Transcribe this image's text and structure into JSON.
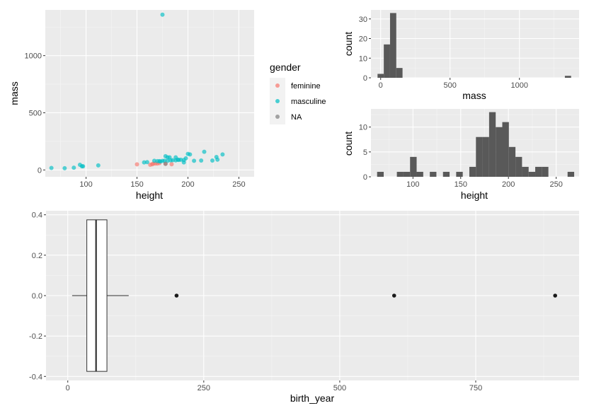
{
  "chart_data": [
    {
      "type": "scatter",
      "xlabel": "height",
      "ylabel": "mass",
      "xlim": [
        60,
        265
      ],
      "ylim": [
        -60,
        1400
      ],
      "xticks": [
        100,
        150,
        200,
        250
      ],
      "yticks": [
        0,
        500,
        1000
      ],
      "legend": {
        "title": "gender",
        "position": "right",
        "entries": [
          {
            "label": "feminine",
            "color": "#F8766D"
          },
          {
            "label": "masculine",
            "color": "#00BFC4"
          },
          {
            "label": "NA",
            "color": "#808080"
          }
        ]
      },
      "series": [
        {
          "name": "feminine",
          "color": "#F8766D",
          "points": [
            [
              150,
              49
            ],
            [
              163,
              45
            ],
            [
              165,
              50
            ],
            [
              166,
              55
            ],
            [
              168,
              56
            ],
            [
              170,
              56
            ],
            [
              172,
              60
            ],
            [
              178,
              55
            ],
            [
              184,
              50
            ]
          ]
        },
        {
          "name": "masculine",
          "color": "#00BFC4",
          "points": [
            [
              66,
              17
            ],
            [
              79,
              15
            ],
            [
              88,
              20
            ],
            [
              94,
              45
            ],
            [
              96,
              32
            ],
            [
              97,
              32
            ],
            [
              112,
              40
            ],
            [
              157,
              66
            ],
            [
              160,
              68
            ],
            [
              167,
              80
            ],
            [
              170,
              77
            ],
            [
              172,
              77
            ],
            [
              173,
              74
            ],
            [
              175,
              1358
            ],
            [
              175,
              79
            ],
            [
              177,
              80
            ],
            [
              178,
              120
            ],
            [
              180,
              110
            ],
            [
              180,
              80
            ],
            [
              182,
              110
            ],
            [
              183,
              84
            ],
            [
              185,
              85
            ],
            [
              188,
              84
            ],
            [
              188,
              110
            ],
            [
              190,
              90
            ],
            [
              191,
              88
            ],
            [
              193,
              89
            ],
            [
              196,
              66
            ],
            [
              196,
              87
            ],
            [
              198,
              102
            ],
            [
              200,
              140
            ],
            [
              202,
              136
            ],
            [
              206,
              80
            ],
            [
              213,
              82
            ],
            [
              216,
              159
            ],
            [
              224,
              82
            ],
            [
              228,
              113
            ],
            [
              229,
              90
            ],
            [
              234,
              136
            ]
          ]
        },
        {
          "name": "NA",
          "color": "#808080",
          "points": [
            [
              178,
              53
            ]
          ]
        }
      ]
    },
    {
      "type": "bar",
      "subtype": "histogram",
      "xlabel": "mass",
      "ylabel": "count",
      "xlim": [
        -70,
        1430
      ],
      "ylim": [
        0,
        34.6
      ],
      "xticks": [
        0,
        500,
        1000
      ],
      "yticks": [
        0,
        10,
        20,
        30
      ],
      "bin_width": 45,
      "bins": [
        [
          0,
          2
        ],
        [
          45,
          17
        ],
        [
          90,
          33
        ],
        [
          135,
          5
        ],
        [
          1350,
          1
        ]
      ]
    },
    {
      "type": "bar",
      "subtype": "histogram",
      "xlabel": "height",
      "ylabel": "count",
      "xlim": [
        56,
        274
      ],
      "ylim": [
        0,
        13.65
      ],
      "xticks": [
        100,
        150,
        200,
        250
      ],
      "yticks": [
        0,
        5,
        10
      ],
      "bin_width": 6.9,
      "bins": [
        [
          65.9,
          1
        ],
        [
          86.6,
          1
        ],
        [
          93.5,
          1
        ],
        [
          100.4,
          4
        ],
        [
          107.3,
          1
        ],
        [
          121.1,
          1
        ],
        [
          134.9,
          1
        ],
        [
          148.7,
          1
        ],
        [
          162.5,
          2
        ],
        [
          169.4,
          8
        ],
        [
          176.3,
          8
        ],
        [
          183.2,
          13
        ],
        [
          190.1,
          10
        ],
        [
          197,
          11
        ],
        [
          203.9,
          6
        ],
        [
          210.8,
          4
        ],
        [
          217.7,
          2
        ],
        [
          224.6,
          1
        ],
        [
          231.5,
          2
        ],
        [
          238.4,
          2
        ],
        [
          265.4,
          1
        ]
      ]
    },
    {
      "type": "boxplot",
      "xlabel": "birth_year",
      "xlim": [
        -40,
        940
      ],
      "ylim": [
        -0.42,
        0.42
      ],
      "xticks": [
        0,
        250,
        500,
        750
      ],
      "yticks": [
        -0.4,
        -0.2,
        0.0,
        0.2,
        0.4
      ],
      "box": {
        "min": 8,
        "q1": 35,
        "median": 52,
        "q3": 72,
        "max": 112,
        "width": [
          -0.375,
          0.375
        ]
      },
      "outliers": [
        200,
        600,
        896
      ]
    }
  ],
  "labels": {
    "scatter_x": "height",
    "scatter_y": "mass",
    "legend_title": "gender",
    "legend_items": [
      "feminine",
      "masculine",
      "NA"
    ],
    "hist_mass_x": "mass",
    "hist_mass_y": "count",
    "hist_height_x": "height",
    "hist_height_y": "count",
    "box_x": "birth_year"
  }
}
